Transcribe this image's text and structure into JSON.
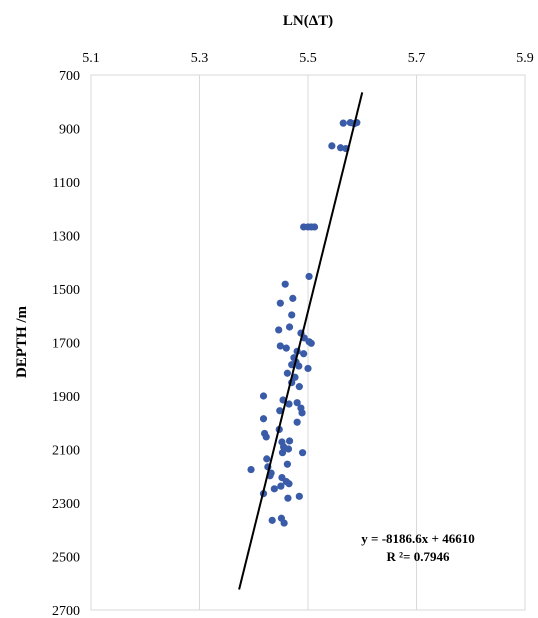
{
  "chart_data": {
    "type": "scatter",
    "title": "",
    "xlabel": "LN(ΔT)",
    "ylabel": "DEPTH /m",
    "x_axis_position": "top",
    "y_axis_reversed": true,
    "xlim": [
      5.1,
      5.9
    ],
    "ylim": [
      700,
      2700
    ],
    "x_ticks": [
      "5.1",
      "5.3",
      "5.5",
      "5.7",
      "5.9"
    ],
    "y_ticks": [
      "700",
      "900",
      "1100",
      "1300",
      "1500",
      "1700",
      "1900",
      "2100",
      "2300",
      "2500",
      "2700"
    ],
    "grid": "vertical",
    "marker_color": "#3A5BA8",
    "trendline_color": "#000000",
    "trendline": {
      "slope": -8186.6,
      "intercept": 46610,
      "x_start": 5.373,
      "x_end": 5.6
    },
    "annotation": {
      "equation": "y = -8186.6x + 46610",
      "r2": "R ²= 0.7946"
    },
    "points": [
      {
        "x": 5.565,
        "y": 880
      },
      {
        "x": 5.578,
        "y": 878
      },
      {
        "x": 5.585,
        "y": 882
      },
      {
        "x": 5.59,
        "y": 878
      },
      {
        "x": 5.544,
        "y": 965
      },
      {
        "x": 5.56,
        "y": 972
      },
      {
        "x": 5.57,
        "y": 975
      },
      {
        "x": 5.492,
        "y": 1268
      },
      {
        "x": 5.5,
        "y": 1268
      },
      {
        "x": 5.506,
        "y": 1268
      },
      {
        "x": 5.512,
        "y": 1268
      },
      {
        "x": 5.502,
        "y": 1453
      },
      {
        "x": 5.458,
        "y": 1482
      },
      {
        "x": 5.472,
        "y": 1535
      },
      {
        "x": 5.449,
        "y": 1553
      },
      {
        "x": 5.47,
        "y": 1597
      },
      {
        "x": 5.466,
        "y": 1642
      },
      {
        "x": 5.446,
        "y": 1653
      },
      {
        "x": 5.487,
        "y": 1665
      },
      {
        "x": 5.493,
        "y": 1683
      },
      {
        "x": 5.502,
        "y": 1697
      },
      {
        "x": 5.506,
        "y": 1703
      },
      {
        "x": 5.449,
        "y": 1713
      },
      {
        "x": 5.46,
        "y": 1721
      },
      {
        "x": 5.48,
        "y": 1733
      },
      {
        "x": 5.492,
        "y": 1742
      },
      {
        "x": 5.474,
        "y": 1757
      },
      {
        "x": 5.478,
        "y": 1773
      },
      {
        "x": 5.47,
        "y": 1783
      },
      {
        "x": 5.483,
        "y": 1788
      },
      {
        "x": 5.5,
        "y": 1797
      },
      {
        "x": 5.462,
        "y": 1815
      },
      {
        "x": 5.476,
        "y": 1830
      },
      {
        "x": 5.47,
        "y": 1850
      },
      {
        "x": 5.484,
        "y": 1865
      },
      {
        "x": 5.418,
        "y": 1900
      },
      {
        "x": 5.454,
        "y": 1915
      },
      {
        "x": 5.48,
        "y": 1925
      },
      {
        "x": 5.487,
        "y": 1945
      },
      {
        "x": 5.465,
        "y": 1930
      },
      {
        "x": 5.448,
        "y": 1955
      },
      {
        "x": 5.489,
        "y": 1963
      },
      {
        "x": 5.418,
        "y": 1985
      },
      {
        "x": 5.48,
        "y": 1998
      },
      {
        "x": 5.447,
        "y": 2025
      },
      {
        "x": 5.42,
        "y": 2040
      },
      {
        "x": 5.423,
        "y": 2053
      },
      {
        "x": 5.466,
        "y": 2068
      },
      {
        "x": 5.452,
        "y": 2072
      },
      {
        "x": 5.455,
        "y": 2090
      },
      {
        "x": 5.464,
        "y": 2098
      },
      {
        "x": 5.49,
        "y": 2112
      },
      {
        "x": 5.453,
        "y": 2112
      },
      {
        "x": 5.424,
        "y": 2135
      },
      {
        "x": 5.462,
        "y": 2155
      },
      {
        "x": 5.426,
        "y": 2165
      },
      {
        "x": 5.395,
        "y": 2175
      },
      {
        "x": 5.432,
        "y": 2188
      },
      {
        "x": 5.43,
        "y": 2198
      },
      {
        "x": 5.452,
        "y": 2205
      },
      {
        "x": 5.46,
        "y": 2220
      },
      {
        "x": 5.465,
        "y": 2228
      },
      {
        "x": 5.45,
        "y": 2237
      },
      {
        "x": 5.438,
        "y": 2247
      },
      {
        "x": 5.418,
        "y": 2265
      },
      {
        "x": 5.484,
        "y": 2275
      },
      {
        "x": 5.463,
        "y": 2282
      },
      {
        "x": 5.451,
        "y": 2357
      },
      {
        "x": 5.434,
        "y": 2365
      },
      {
        "x": 5.456,
        "y": 2375
      }
    ]
  }
}
